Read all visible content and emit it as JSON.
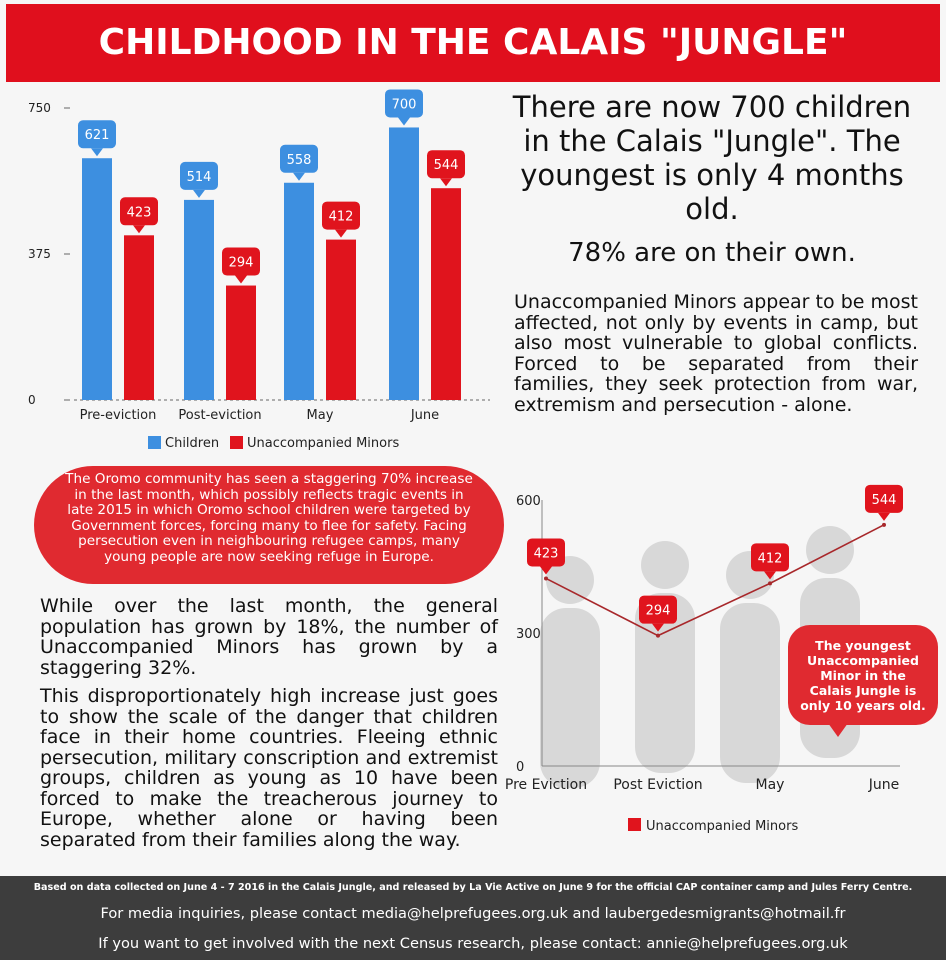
{
  "header": {
    "title": "CHILDHOOD IN THE CALAIS \"JUNGLE\""
  },
  "stats": {
    "children_statement": "There are now 700 children in the Calais \"Jungle\". The youngest is only 4 months old.",
    "alone_statement": "78% are on their own."
  },
  "paragraphs": {
    "unaccompanied": "Unaccompanied Minors appear to be most affected, not only by events in camp, but also most vulnerable to global conflicts. Forced to be separated from their families, they seek protection from war, extremism and persecution - alone.",
    "growth": "While over the last month, the general population has grown by 18%, the number of Unaccompanied Minors has grown by a staggering 32%.",
    "danger": "This disproportionately high increase just goes to show the scale of the danger that children face in their home countries. Fleeing ethnic persecution, military conscription and extremist groups, children as young as 10 have been forced to make the treacherous journey to Europe, whether alone or having been separated from their families along the way."
  },
  "oromo_note": "The Oromo community has seen a staggering 70% increase in the last month, which possibly reflects tragic events in late 2015 in which Oromo school children were targeted by Government forces, forcing many to flee for safety. Facing persecution even in neighbouring refugee camps, many young people are now seeking refuge in Europe.",
  "callout": {
    "text": "The youngest Unaccompanied Minor in the Calais Jungle is only 10 years old."
  },
  "footer": {
    "note": "Based on data collected on June 4 - 7 2016 in the Calais Jungle, and released by La Vie Active on June 9 for the official CAP container camp and Jules Ferry Centre.",
    "media": "For media inquiries, please contact media@helprefugees.org.uk and laubergedesmigrants@hotmail.fr",
    "census": "If you want to get involved with the next Census research, please contact: annie@helprefugees.org.uk"
  },
  "colors": {
    "children": "#3d8fe0",
    "minors": "#e0141d",
    "header": "#e00f1d",
    "footer": "#3d3d3d"
  },
  "chart_data": [
    {
      "type": "bar",
      "categories": [
        "Pre-eviction",
        "Post-eviction",
        "May",
        "June"
      ],
      "series": [
        {
          "name": "Children",
          "values": [
            621,
            514,
            558,
            700
          ]
        },
        {
          "name": "Unaccompanied Minors",
          "values": [
            423,
            294,
            412,
            544
          ]
        }
      ],
      "y_ticks": [
        "0",
        "375",
        "750"
      ],
      "ylim": [
        0,
        750
      ],
      "legend_position": "bottom",
      "grid": false
    },
    {
      "type": "line",
      "categories": [
        "Pre Eviction",
        "Post Eviction",
        "May",
        "June"
      ],
      "series": [
        {
          "name": "Unaccompanied Minors",
          "values": [
            423,
            294,
            412,
            544
          ]
        }
      ],
      "y_ticks": [
        "0",
        "300",
        "600"
      ],
      "ylim": [
        0,
        600
      ],
      "legend_position": "bottom",
      "grid": false
    }
  ]
}
